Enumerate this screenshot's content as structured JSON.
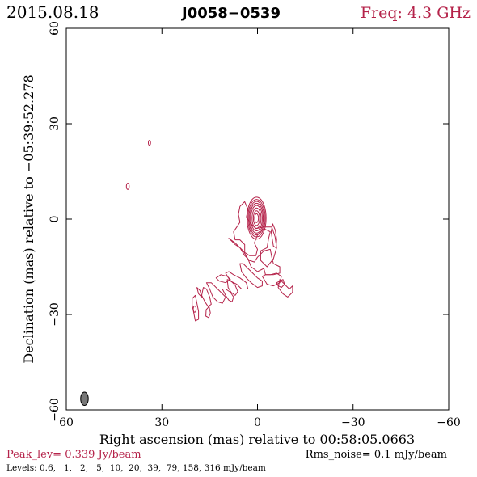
{
  "header": {
    "date": "2015.08.18",
    "source": "J0058−0539",
    "freq": "Freq: 4.3 GHz"
  },
  "footer": {
    "peak": "Peak_lev=  0.339 Jy/beam",
    "rms": "Rms_noise=  0.1 mJy/beam",
    "levels": "Levels: 0.6,   1,   2,   5,  10,  20,  39,  79, 158, 316 mJy/beam"
  },
  "colors": {
    "contour": "#b5234a",
    "peak_text": "#b5234a",
    "freq_text": "#b5234a",
    "axes": "#000000",
    "beam_fill": "#777777"
  },
  "chart_data": {
    "type": "contour",
    "xlabel": "Right ascension (mas) relative to 00:58:05.0663",
    "ylabel": "Declination (mas) relative to −05:39:52.278",
    "xlim": [
      60,
      -60
    ],
    "ylim": [
      -60,
      60
    ],
    "xticks": [
      60,
      30,
      0,
      -30,
      -60
    ],
    "yticks": [
      -60,
      -30,
      0,
      30,
      60
    ],
    "xtick_labels": [
      "60",
      "30",
      "0",
      "−30",
      "−60"
    ],
    "ytick_labels": [
      "−60",
      "−30",
      "0",
      "30",
      "60"
    ],
    "peak_jy_per_beam": 0.339,
    "rms_mjy_per_beam": 0.1,
    "levels_mjy_per_beam": [
      0.6,
      1,
      2,
      5,
      10,
      20,
      39,
      79,
      158,
      316
    ],
    "core": {
      "ra": 0.3,
      "dec": 0.3,
      "rings": [
        {
          "a": 0.6,
          "b": 1.4
        },
        {
          "a": 1.0,
          "b": 2.3
        },
        {
          "a": 1.4,
          "b": 3.2
        },
        {
          "a": 1.8,
          "b": 4.0
        },
        {
          "a": 2.1,
          "b": 4.7
        },
        {
          "a": 2.4,
          "b": 5.3
        },
        {
          "a": 2.7,
          "b": 5.9
        },
        {
          "a": 3.0,
          "b": 6.6
        }
      ]
    },
    "outer_contours": [
      [
        [
          4,
          5.5
        ],
        [
          3,
          3
        ],
        [
          3.5,
          0.5
        ],
        [
          2,
          -1.5
        ],
        [
          0.5,
          -3
        ],
        [
          -2,
          -2.5
        ],
        [
          -4.5,
          -2.5
        ],
        [
          -5.5,
          -5.5
        ],
        [
          -6,
          -9
        ],
        [
          -5,
          -12.5
        ],
        [
          -3,
          -15
        ],
        [
          -1,
          -13
        ],
        [
          -1,
          -10
        ],
        [
          -3,
          -9
        ],
        [
          -3.5,
          -6
        ],
        [
          -4,
          -4
        ],
        [
          -2,
          -3
        ],
        [
          0,
          -5
        ],
        [
          1,
          -7.5
        ],
        [
          0,
          -9.5
        ],
        [
          0.5,
          -11.5
        ],
        [
          2.5,
          -11.5
        ],
        [
          4,
          -10.5
        ],
        [
          4,
          -8
        ],
        [
          5.5,
          -6.5
        ],
        [
          7,
          -6.5
        ],
        [
          7.5,
          -4
        ],
        [
          6.5,
          -2.5
        ],
        [
          5.5,
          -1
        ],
        [
          6,
          1.5
        ],
        [
          5.5,
          4
        ]
      ],
      [
        [
          -4.8,
          -1.5
        ],
        [
          -5.6,
          -3.5
        ],
        [
          -6.0,
          -6.5
        ],
        [
          -5.8,
          -9
        ],
        [
          -5.0,
          -8.5
        ],
        [
          -4.6,
          -6
        ],
        [
          -4.3,
          -4
        ]
      ],
      [
        [
          9,
          -6
        ],
        [
          7,
          -7.5
        ],
        [
          4.5,
          -10
        ],
        [
          3,
          -12.5
        ],
        [
          2,
          -15
        ],
        [
          0,
          -16.5
        ],
        [
          -2,
          -15.5
        ],
        [
          -2.5,
          -17.5
        ],
        [
          -5,
          -17.5
        ],
        [
          -7,
          -17
        ],
        [
          -7,
          -15
        ],
        [
          -5,
          -14
        ],
        [
          -4.5,
          -12
        ],
        [
          -4,
          -9.5
        ],
        [
          -2,
          -10
        ],
        [
          0,
          -12
        ],
        [
          1,
          -13.5
        ],
        [
          2.5,
          -13
        ],
        [
          4,
          -11.5
        ],
        [
          5.5,
          -9
        ],
        [
          7,
          -8
        ],
        [
          8,
          -7
        ]
      ],
      [
        [
          5.5,
          -14
        ],
        [
          5,
          -16.5
        ],
        [
          3.5,
          -18.5
        ],
        [
          2,
          -20
        ],
        [
          0,
          -21.5
        ],
        [
          -1.5,
          -21
        ],
        [
          -1.5,
          -19.5
        ],
        [
          0,
          -18.5
        ],
        [
          1.5,
          -17
        ],
        [
          3,
          -15.5
        ],
        [
          4.5,
          -14
        ]
      ],
      [
        [
          -1.5,
          -18
        ],
        [
          -3,
          -20.5
        ],
        [
          -5,
          -21
        ],
        [
          -7,
          -20
        ],
        [
          -7.5,
          -18
        ],
        [
          -6,
          -17
        ],
        [
          -4,
          -17.5
        ],
        [
          -2.5,
          -17.5
        ]
      ],
      [
        [
          10,
          -17
        ],
        [
          8.5,
          -19.5
        ],
        [
          6.5,
          -20.5
        ],
        [
          5,
          -22
        ],
        [
          3,
          -22
        ],
        [
          3.5,
          -20
        ],
        [
          5.5,
          -18.5
        ],
        [
          7.5,
          -17.5
        ],
        [
          9,
          -16.5
        ]
      ],
      [
        [
          9.5,
          -19
        ],
        [
          9.2,
          -21.5
        ],
        [
          8.3,
          -23
        ],
        [
          7,
          -24
        ],
        [
          6.2,
          -22.8
        ],
        [
          7,
          -20.8
        ],
        [
          8.5,
          -19.3
        ]
      ],
      [
        [
          13,
          -18.5
        ],
        [
          12,
          -19.5
        ],
        [
          10,
          -20
        ],
        [
          8.5,
          -19
        ],
        [
          9.5,
          -18
        ],
        [
          11.5,
          -17.5
        ]
      ],
      [
        [
          -7,
          -19
        ],
        [
          -9,
          -21
        ],
        [
          -10,
          -22
        ],
        [
          -11,
          -21
        ],
        [
          -11,
          -23
        ],
        [
          -9.5,
          -24.5
        ],
        [
          -8,
          -23.5
        ],
        [
          -6.5,
          -21.5
        ]
      ],
      [
        [
          -6,
          -20
        ],
        [
          -8,
          -19
        ],
        [
          -8.5,
          -20.5
        ],
        [
          -7.5,
          -21.5
        ],
        [
          -6.5,
          -21
        ]
      ],
      [
        [
          16,
          -20
        ],
        [
          15,
          -22
        ],
        [
          14,
          -24.5
        ],
        [
          12.5,
          -26
        ],
        [
          11,
          -26.5
        ],
        [
          10,
          -24.5
        ],
        [
          11.5,
          -23
        ],
        [
          13,
          -21.5
        ],
        [
          14.5,
          -20
        ]
      ],
      [
        [
          17,
          -21.5
        ],
        [
          17.5,
          -24
        ],
        [
          16.5,
          -26
        ],
        [
          15.5,
          -27.5
        ],
        [
          14.5,
          -26.8
        ],
        [
          15,
          -24.5
        ],
        [
          16,
          -22
        ]
      ],
      [
        [
          11,
          -22
        ],
        [
          10,
          -24
        ],
        [
          9,
          -25.5
        ],
        [
          8,
          -26
        ],
        [
          7.5,
          -24.5
        ],
        [
          8.5,
          -23
        ],
        [
          10,
          -22
        ]
      ],
      [
        [
          19,
          -21.5
        ],
        [
          18.5,
          -23.5
        ],
        [
          17.5,
          -24.5
        ],
        [
          18,
          -22.5
        ]
      ],
      [
        [
          19.5,
          -24
        ],
        [
          19,
          -26.5
        ],
        [
          18.5,
          -29
        ],
        [
          18.5,
          -31.5
        ],
        [
          19.5,
          -32
        ],
        [
          20,
          -29.5
        ],
        [
          20.5,
          -27
        ],
        [
          20.5,
          -25
        ]
      ],
      [
        [
          15.2,
          -27.5
        ],
        [
          14.8,
          -29.5
        ],
        [
          15.3,
          -31
        ],
        [
          16.2,
          -30.5
        ],
        [
          16.1,
          -28.5
        ]
      ]
    ],
    "isolated_components": [
      {
        "ra": 40.7,
        "dec": 10.3,
        "a": 0.45,
        "b": 1.0
      },
      {
        "ra": 33.9,
        "dec": 24.0,
        "a": 0.35,
        "b": 0.75
      },
      {
        "ra": 19.7,
        "dec": -28.3,
        "a": 0.45,
        "b": 1.0
      }
    ],
    "beam": {
      "ra": 54.3,
      "dec": -56.5,
      "major": 4.2,
      "minor": 2.4,
      "pa_deg": 0
    }
  }
}
